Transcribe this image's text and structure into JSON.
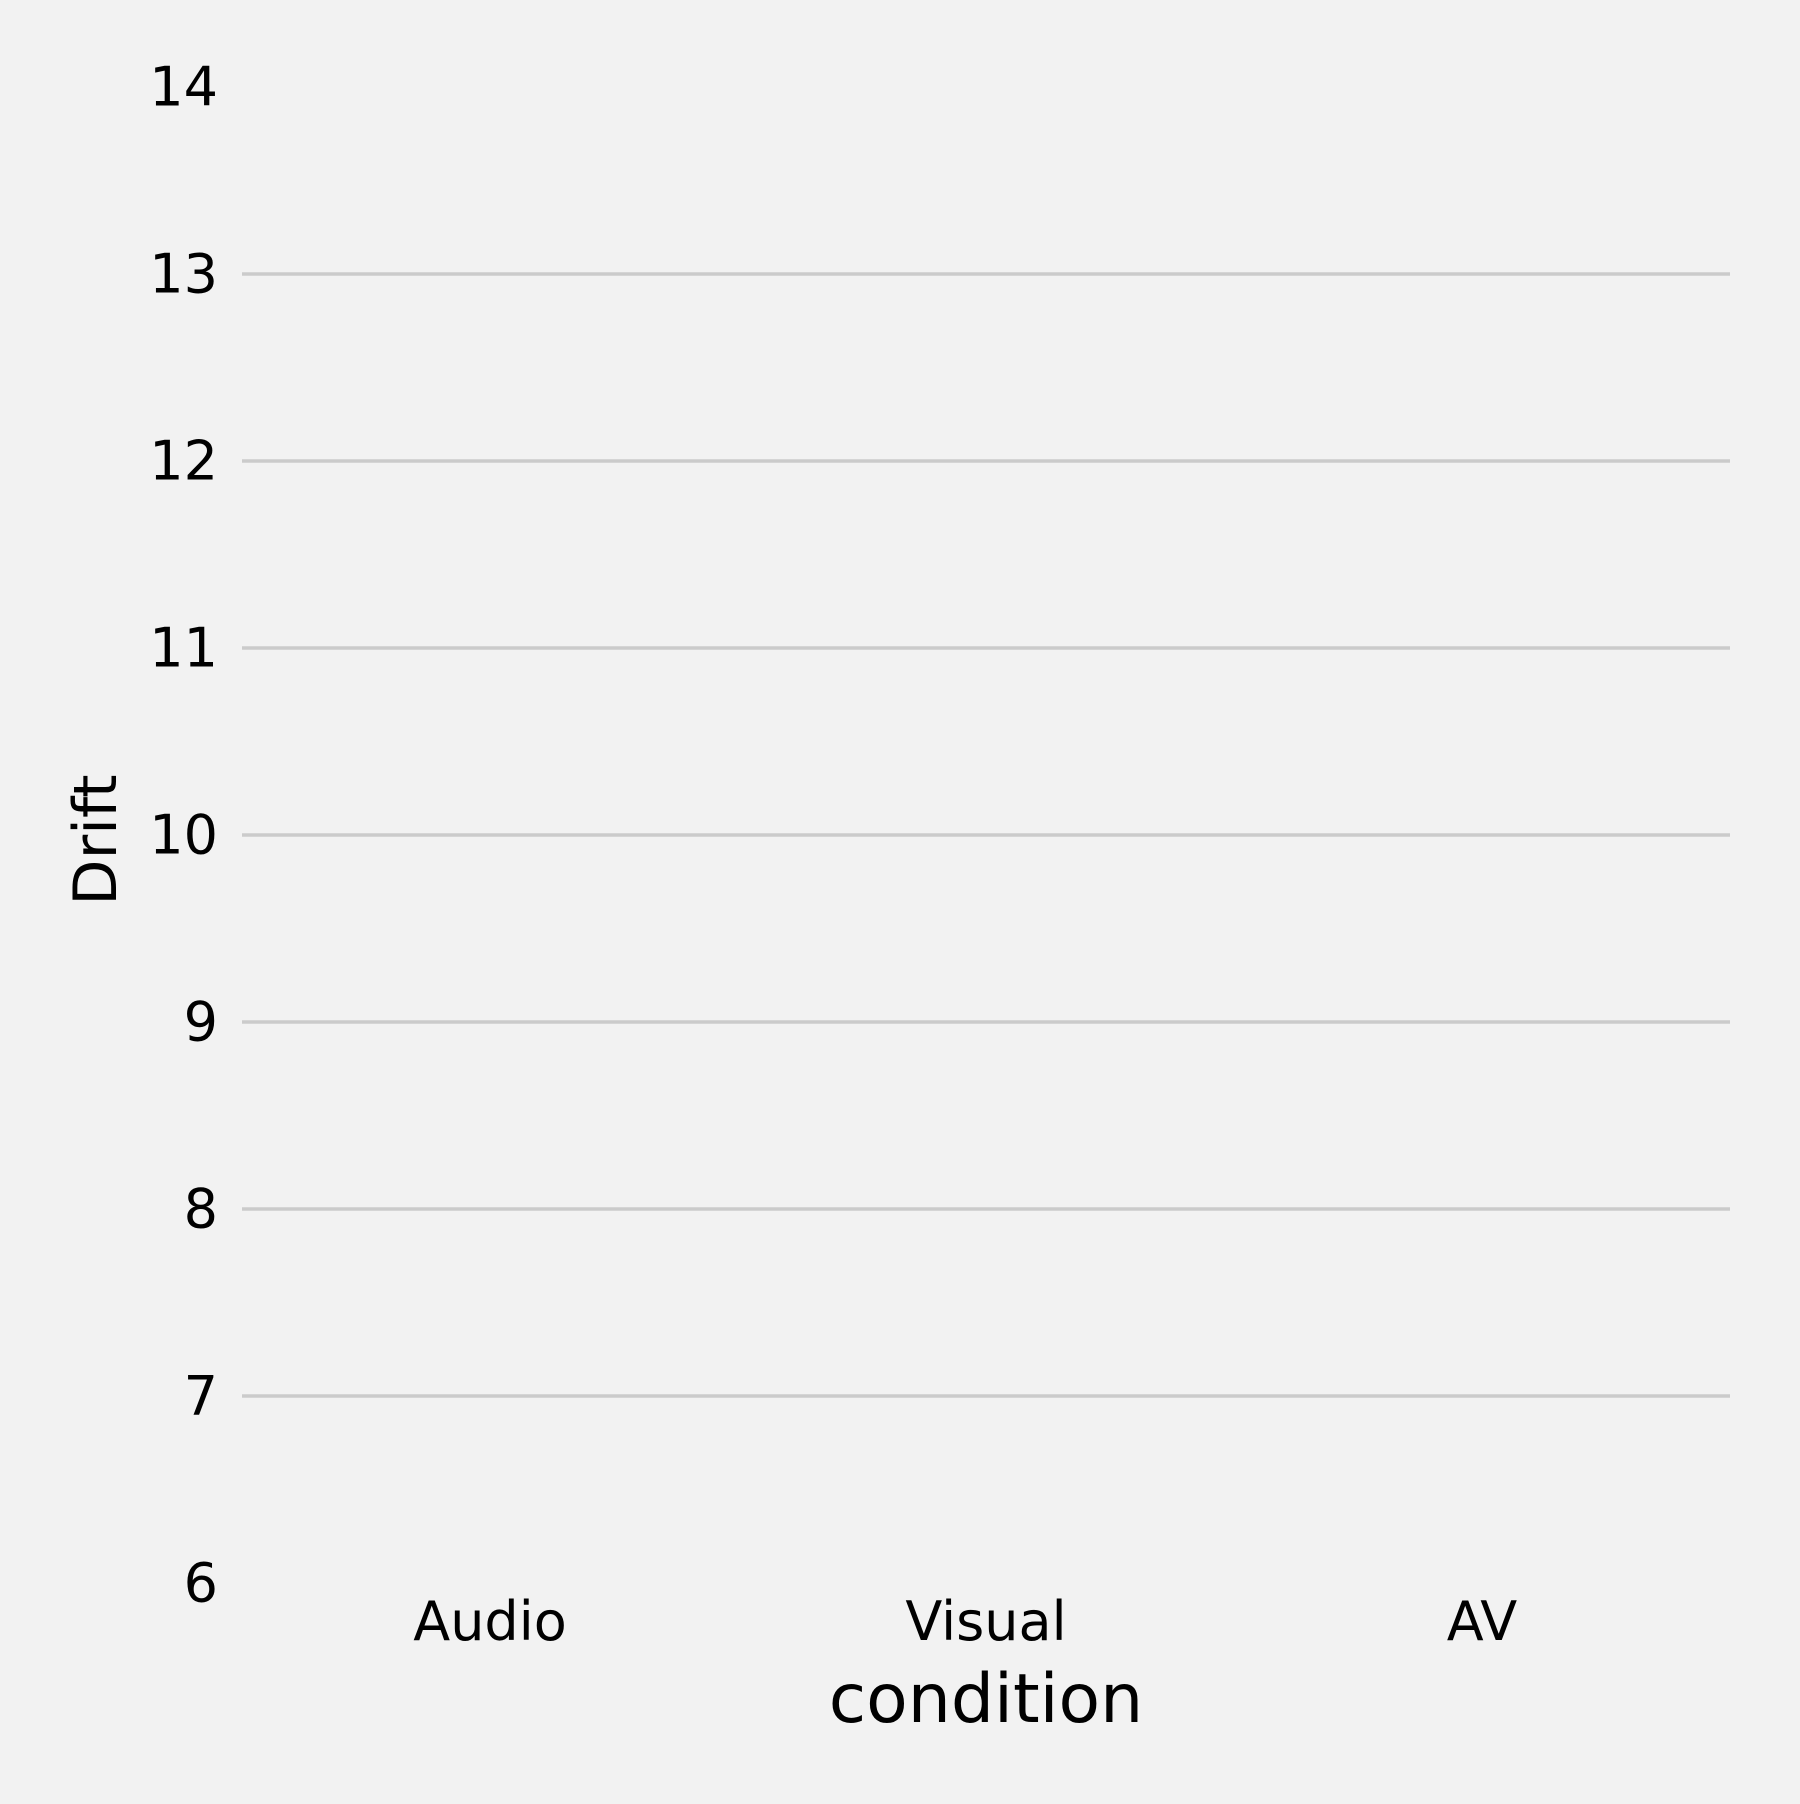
{
  "chart_data": {
    "type": "bar",
    "title": "",
    "xlabel": "condition",
    "ylabel": "Drift",
    "categories": [
      "Audio",
      "Visual",
      "AV"
    ],
    "series": [
      {
        "values": [
          null,
          null,
          null
        ]
      }
    ],
    "ylim": [
      6,
      14
    ],
    "yticks": [
      "6",
      "7",
      "8",
      "9",
      "10",
      "11",
      "12",
      "13",
      "14"
    ],
    "grid": "horizontal",
    "legend": "none",
    "colors": {
      "background": "#f2f2f2",
      "grid": "#cbcbcb",
      "text": "#000000"
    }
  }
}
